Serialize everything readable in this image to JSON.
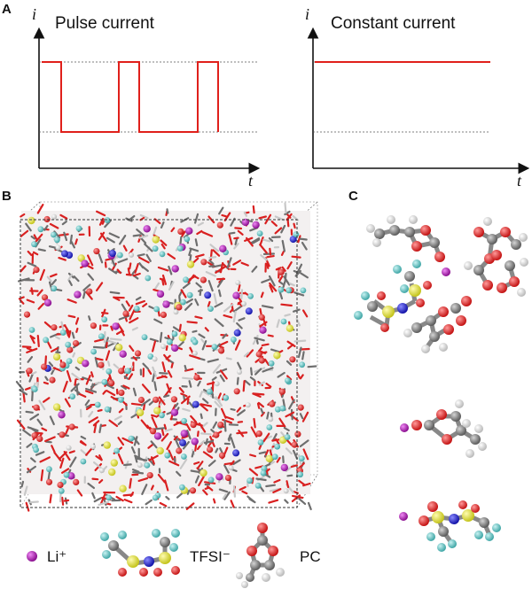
{
  "panels": {
    "a_label": "A",
    "b_label": "B",
    "c_label": "C"
  },
  "pulse_plot": {
    "title": "Pulse current",
    "y_axis": "i",
    "x_axis": "t"
  },
  "constant_plot": {
    "title": "Constant current",
    "y_axis": "i",
    "x_axis": "t"
  },
  "legend": {
    "li_label": "Li⁺",
    "tfsi_label": "TFSI⁻",
    "pc_label": "PC"
  },
  "colors": {
    "signal": "#e0201b",
    "oxygen": "#e32222",
    "carbon": "#8a8a8a",
    "hydrogen": "#ffffff",
    "fluorine": "#6fc8c8",
    "sulfur": "#e7e73a",
    "nitrogen": "#2a2ad8",
    "lithium": "#b21bb8"
  }
}
